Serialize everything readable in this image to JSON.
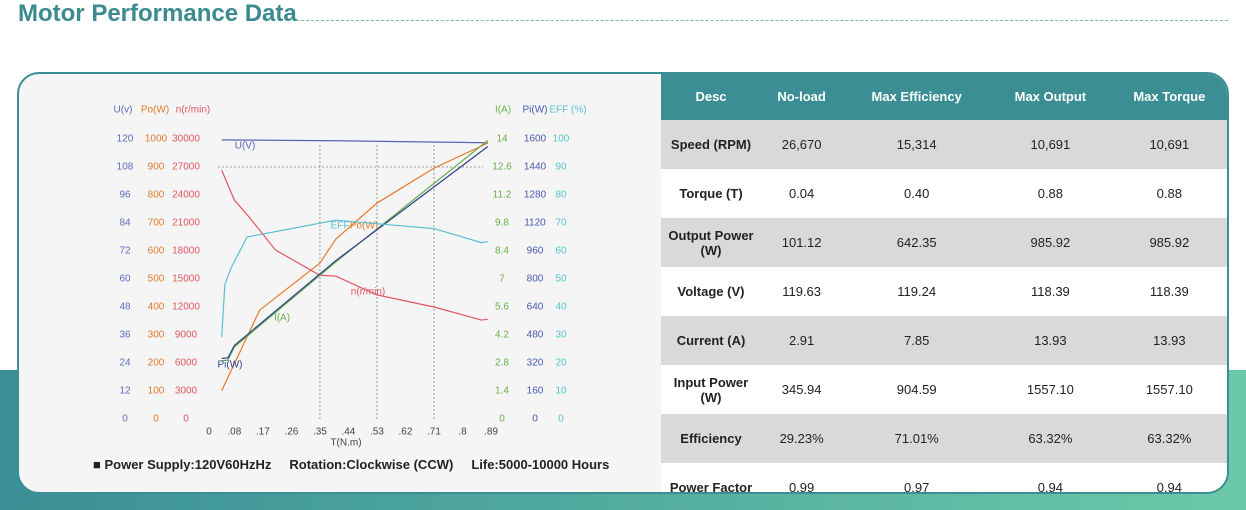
{
  "header": {
    "title": "Motor Performance Data"
  },
  "chart_data": {
    "type": "line",
    "x_label": "T(N.m)",
    "xlim": [
      0,
      0.89
    ],
    "xticks": [
      0,
      {
        "value": 0.08,
        "label": ".08"
      },
      {
        "value": 0.17,
        "label": ".17"
      },
      {
        "value": 0.26,
        "label": ".26"
      },
      {
        "value": 0.35,
        "label": ".35"
      },
      {
        "value": 0.44,
        "label": ".44"
      },
      {
        "value": 0.53,
        "label": ".53"
      },
      {
        "value": 0.62,
        "label": ".62"
      },
      {
        "value": 0.71,
        "label": ".71"
      },
      {
        "value": 0.8,
        "label": ".8"
      },
      {
        "value": 0.89,
        "label": ".89"
      }
    ],
    "axes": [
      {
        "label": "U(v)",
        "color": "#5b6cc0",
        "ylim": [
          0,
          120
        ],
        "yticks": [
          0,
          12,
          24,
          36,
          48,
          60,
          72,
          84,
          96,
          108,
          120
        ]
      },
      {
        "label": "Po(W)",
        "color": "#e07a2a",
        "ylim": [
          0,
          1000
        ],
        "yticks": [
          0,
          100,
          200,
          300,
          400,
          500,
          600,
          700,
          800,
          900,
          1000
        ]
      },
      {
        "label": "n(r/min)",
        "color": "#e05560",
        "ylim": [
          0,
          30000
        ],
        "yticks": [
          0,
          3000,
          6000,
          9000,
          12000,
          15000,
          18000,
          21000,
          24000,
          27000,
          30000
        ]
      },
      {
        "label": "I(A)",
        "color": "#6ab04c",
        "ylim": [
          0,
          14
        ],
        "yticks": [
          0,
          1.4,
          2.8,
          4.2,
          5.6,
          7,
          8.4,
          9.8,
          11.2,
          12.6,
          14
        ]
      },
      {
        "label": "Pi(W)",
        "color": "#4659b0",
        "ylim": [
          0,
          1600
        ],
        "yticks": [
          0,
          160,
          320,
          480,
          640,
          800,
          960,
          1120,
          1280,
          1440,
          1600
        ]
      },
      {
        "label": "EFF (%)",
        "color": "#5bc0d0",
        "ylim": [
          0,
          100
        ],
        "yticks": [
          0,
          10,
          20,
          30,
          40,
          50,
          60,
          70,
          80,
          90,
          100
        ]
      }
    ],
    "series": [
      {
        "name": "U(V)",
        "color": "#5a63b5",
        "axis": 0,
        "x": [
          0.04,
          0.4,
          0.88
        ],
        "values": [
          119.63,
          119.24,
          118.39
        ]
      },
      {
        "name": "Po(W)",
        "color": "#e8782a",
        "axis": 1,
        "x": [
          0.04,
          0.16,
          0.35,
          0.4,
          0.53,
          0.71,
          0.86,
          0.88
        ],
        "values": [
          101.12,
          389,
          557,
          642.35,
          771,
          896,
          975,
          985.92
        ]
      },
      {
        "name": "n(r/min)",
        "color": "#e05560",
        "axis": 2,
        "x": [
          0.04,
          0.08,
          0.13,
          0.21,
          0.35,
          0.4,
          0.53,
          0.71,
          0.86,
          0.88
        ],
        "values": [
          26670,
          23464,
          21500,
          18100,
          15400,
          15314,
          13300,
          12000,
          10600,
          10691
        ]
      },
      {
        "name": "I(A)",
        "color": "#6ab04c",
        "axis": 3,
        "x": [
          0.04,
          0.06,
          0.08,
          0.4,
          0.88
        ],
        "values": [
          2.91,
          2.95,
          3.6,
          7.85,
          13.93
        ]
      },
      {
        "name": "Pi(W)",
        "color": "#2f3f8f",
        "axis": 4,
        "x": [
          0.04,
          0.06,
          0.08,
          0.4,
          0.88
        ],
        "values": [
          345.94,
          350,
          420,
          904.59,
          1557.1
        ]
      },
      {
        "name": "EFF",
        "color": "#5bc0d0",
        "axis": 5,
        "x": [
          0.04,
          0.05,
          0.07,
          0.12,
          0.26,
          0.4,
          0.71,
          0.86,
          0.88
        ],
        "values": [
          29.23,
          48,
          54,
          65,
          68,
          71.01,
          68,
          63,
          63.32
        ]
      }
    ]
  },
  "footer": {
    "items": [
      "Power Supply:120V60HzHz",
      "Rotation:Clockwise (CCW)",
      "Life:5000-10000 Hours"
    ]
  },
  "table": {
    "header": [
      "Desc",
      "No-load",
      "Max Efficiency",
      "Max Output",
      "Max Torque"
    ],
    "rows": [
      [
        "Speed (RPM)",
        "26,670",
        "15,314",
        "10,691",
        "10,691"
      ],
      [
        "Torque (T)",
        "0.04",
        "0.40",
        "0.88",
        "0.88"
      ],
      [
        "Output Power (W)",
        "101.12",
        "642.35",
        "985.92",
        "985.92"
      ],
      [
        "Voltage (V)",
        "119.63",
        "119.24",
        "118.39",
        "118.39"
      ],
      [
        "Current (A)",
        "2.91",
        "7.85",
        "13.93",
        "13.93"
      ],
      [
        "Input Power (W)",
        "345.94",
        "904.59",
        "1557.10",
        "1557.10"
      ],
      [
        "Efficiency",
        "29.23%",
        "71.01%",
        "63.32%",
        "63.32%"
      ],
      [
        "Power Factor",
        "0.99",
        "0.97",
        "0.94",
        "0.94"
      ]
    ]
  }
}
